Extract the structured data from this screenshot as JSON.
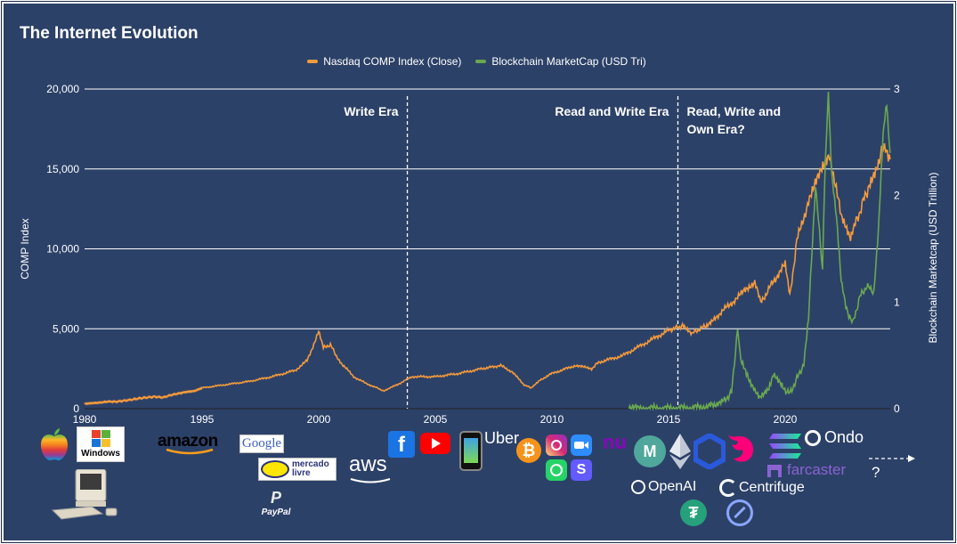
{
  "chart_data": {
    "type": "line",
    "title": "The Internet Evolution",
    "ylabel": "COMP Index",
    "y2label": "Blockchain Marketcap (USD Trillion)",
    "ylim": [
      0,
      20000
    ],
    "y2lim": [
      0,
      3
    ],
    "xlim": [
      1980,
      2024.5
    ],
    "x_ticks": [
      "1980",
      "1995",
      "2000",
      "2005",
      "2010",
      "2015",
      "2020"
    ],
    "y_ticks": [
      "0",
      "5,000",
      "10,000",
      "15,000",
      "20,000"
    ],
    "y2_ticks": [
      "0",
      "1",
      "2",
      "3"
    ],
    "grid": true,
    "legend_position": "top-center",
    "eras": [
      {
        "x": 2003.8,
        "label": "Write Era",
        "label_side": "left"
      },
      {
        "x": 2015.4,
        "label": "Read and Write Era",
        "label_side": "left"
      },
      {
        "x": 2015.4,
        "label": "Read, Write and Own Era?",
        "label_side": "right"
      }
    ],
    "series": [
      {
        "name": "Nasdaq COMP Index (Close)",
        "color": "#f39a3c",
        "axis": "left",
        "points": [
          [
            1980,
            300
          ],
          [
            1981,
            350
          ],
          [
            1982,
            380
          ],
          [
            1983,
            450
          ],
          [
            1984,
            430
          ],
          [
            1985,
            500
          ],
          [
            1986,
            560
          ],
          [
            1987,
            650
          ],
          [
            1988,
            700
          ],
          [
            1989,
            750
          ],
          [
            1990,
            700
          ],
          [
            1991,
            850
          ],
          [
            1992,
            950
          ],
          [
            1993,
            1050
          ],
          [
            1994,
            1100
          ],
          [
            1995,
            1300
          ],
          [
            1996,
            1500
          ],
          [
            1997,
            1700
          ],
          [
            1998,
            2000
          ],
          [
            1999,
            2400
          ],
          [
            1999.5,
            3000
          ],
          [
            2000.0,
            4800
          ],
          [
            2000.2,
            3800
          ],
          [
            2000.5,
            4000
          ],
          [
            2000.8,
            3200
          ],
          [
            2001,
            2800
          ],
          [
            2001.5,
            2000
          ],
          [
            2002,
            1600
          ],
          [
            2002.5,
            1300
          ],
          [
            2002.8,
            1100
          ],
          [
            2003,
            1250
          ],
          [
            2003.5,
            1600
          ],
          [
            2004,
            2000
          ],
          [
            2005,
            2000
          ],
          [
            2006,
            2200
          ],
          [
            2007,
            2500
          ],
          [
            2007.8,
            2700
          ],
          [
            2008.3,
            2300
          ],
          [
            2008.8,
            1500
          ],
          [
            2009.1,
            1300
          ],
          [
            2009.5,
            1800
          ],
          [
            2010,
            2200
          ],
          [
            2011,
            2700
          ],
          [
            2011.7,
            2500
          ],
          [
            2012,
            2900
          ],
          [
            2013,
            3300
          ],
          [
            2014,
            4100
          ],
          [
            2015,
            4900
          ],
          [
            2015.6,
            5200
          ],
          [
            2016,
            4700
          ],
          [
            2016.6,
            5200
          ],
          [
            2017,
            5700
          ],
          [
            2018,
            7000
          ],
          [
            2018.7,
            8000
          ],
          [
            2018.95,
            6600
          ],
          [
            2019.5,
            8000
          ],
          [
            2020,
            9000
          ],
          [
            2020.2,
            7000
          ],
          [
            2020.5,
            10500
          ],
          [
            2021,
            13000
          ],
          [
            2021.9,
            16000
          ],
          [
            2022.4,
            12000
          ],
          [
            2022.8,
            10500
          ],
          [
            2023,
            11500
          ],
          [
            2023.6,
            14000
          ],
          [
            2024,
            15500
          ],
          [
            2024.3,
            16500
          ],
          [
            2024.5,
            15600
          ]
        ]
      },
      {
        "name": "Blockchain MarketCap (USD Tri)",
        "color": "#6aa84f",
        "axis": "right",
        "points": [
          [
            2013.3,
            0.001
          ],
          [
            2014,
            0.005
          ],
          [
            2015,
            0.003
          ],
          [
            2016,
            0.007
          ],
          [
            2017,
            0.03
          ],
          [
            2017.4,
            0.08
          ],
          [
            2017.7,
            0.15
          ],
          [
            2017.96,
            0.75
          ],
          [
            2018.1,
            0.45
          ],
          [
            2018.5,
            0.25
          ],
          [
            2018.9,
            0.12
          ],
          [
            2019.3,
            0.2
          ],
          [
            2019.5,
            0.33
          ],
          [
            2019.9,
            0.2
          ],
          [
            2020.2,
            0.14
          ],
          [
            2020.5,
            0.28
          ],
          [
            2020.8,
            0.42
          ],
          [
            2021.0,
            0.85
          ],
          [
            2021.3,
            2.1
          ],
          [
            2021.6,
            1.3
          ],
          [
            2021.7,
            2.2
          ],
          [
            2021.85,
            2.95
          ],
          [
            2022.0,
            2.2
          ],
          [
            2022.2,
            1.8
          ],
          [
            2022.4,
            1.2
          ],
          [
            2022.6,
            0.95
          ],
          [
            2022.9,
            0.8
          ],
          [
            2023.2,
            1.05
          ],
          [
            2023.5,
            1.15
          ],
          [
            2023.8,
            1.1
          ],
          [
            2024.0,
            1.7
          ],
          [
            2024.2,
            2.6
          ],
          [
            2024.35,
            2.85
          ],
          [
            2024.5,
            2.4
          ]
        ]
      }
    ]
  },
  "timeline_icons": {
    "arrow_label": "?",
    "logos": {
      "windows": "Windows",
      "amazon": "amazon",
      "google": "Google",
      "mercado": "mercado livre",
      "aws": "aws",
      "paypal": "PayPal",
      "uber": "Uber",
      "nubank": "nu",
      "ondo": "Ondo",
      "farcaster": "farcaster",
      "openai": "OpenAI",
      "centrifuge": "Centrifuge"
    }
  }
}
